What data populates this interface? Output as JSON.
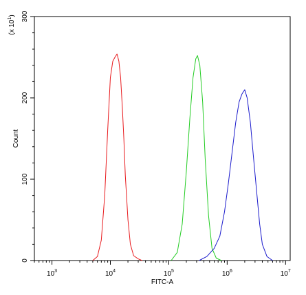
{
  "chart_data": {
    "type": "line",
    "title": "",
    "xlabel": "FITC-A",
    "ylabel": "Count",
    "y_multiplier_label": "(x 10^1)",
    "x_scale": "log",
    "xlim": [
      500,
      12000000
    ],
    "ylim": [
      0,
      300
    ],
    "grid": false,
    "legend": "none",
    "x_ticks": [
      {
        "value": 1000,
        "base": "10",
        "exp": "3"
      },
      {
        "value": 10000,
        "base": "10",
        "exp": "4"
      },
      {
        "value": 100000,
        "base": "10",
        "exp": "5"
      },
      {
        "value": 1000000,
        "base": "10",
        "exp": "6"
      },
      {
        "value": 10000000,
        "base": "10",
        "exp": "7"
      }
    ],
    "y_ticks": [
      {
        "value": 0,
        "label": "0"
      },
      {
        "value": 100,
        "label": "100"
      },
      {
        "value": 200,
        "label": "200"
      },
      {
        "value": 300,
        "label": "300"
      }
    ],
    "series": [
      {
        "color": "#e8191c",
        "x": [
          5000,
          6000,
          7000,
          8000,
          9000,
          10000,
          11000,
          12000,
          13000,
          14000,
          15000,
          16000,
          17000,
          18000,
          20000,
          22000,
          25000,
          30000,
          35000
        ],
        "y": [
          0,
          5,
          25,
          80,
          160,
          225,
          245,
          250,
          254,
          245,
          225,
          190,
          150,
          105,
          50,
          20,
          6,
          2,
          0
        ]
      },
      {
        "color": "#22cc22",
        "x": [
          110000,
          140000,
          170000,
          200000,
          230000,
          260000,
          290000,
          310000,
          340000,
          380000,
          420000,
          480000,
          550000,
          650000,
          800000
        ],
        "y": [
          0,
          10,
          45,
          110,
          175,
          225,
          248,
          252,
          240,
          195,
          125,
          55,
          15,
          3,
          0
        ]
      },
      {
        "color": "#1a1acc",
        "x": [
          330000,
          450000,
          600000,
          750000,
          900000,
          1050000,
          1200000,
          1400000,
          1600000,
          1800000,
          2000000,
          2200000,
          2500000,
          2800000,
          3200000,
          3600000,
          4000000,
          4800000,
          6000000
        ],
        "y": [
          0,
          5,
          15,
          30,
          60,
          95,
          130,
          170,
          195,
          205,
          210,
          200,
          170,
          130,
          85,
          45,
          20,
          5,
          0
        ]
      }
    ]
  }
}
